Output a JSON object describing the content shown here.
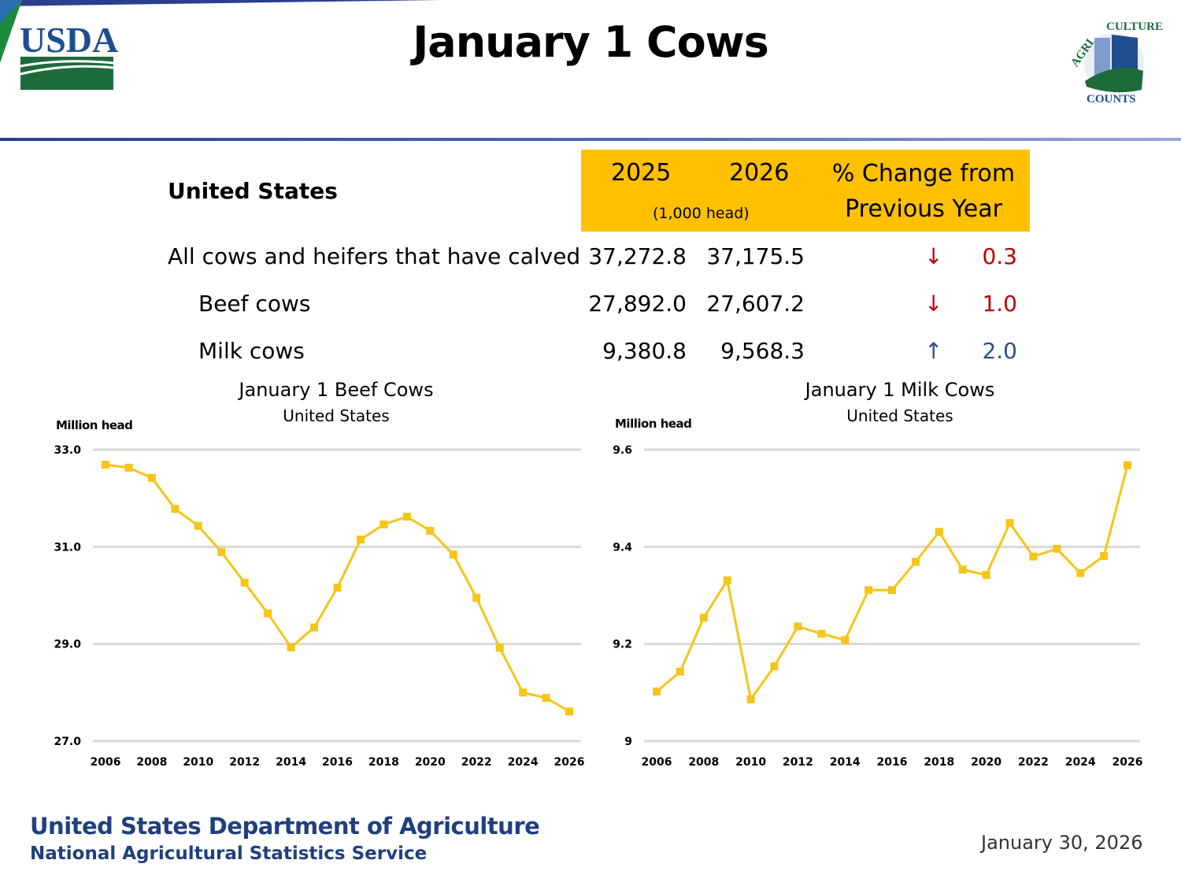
{
  "header": {
    "title": "January 1 Cows",
    "usda_logo_text": "USDA",
    "ag_counts_logo_text": "AGRICULTURE COUNTS"
  },
  "table": {
    "region": "United States",
    "col_2025": "2025",
    "col_2026": "2026",
    "unit": "(1,000 head)",
    "pct_line1": "% Change from",
    "pct_line2": "Previous Year",
    "rows": [
      {
        "label": "All cows and heifers that have calved",
        "v2025": "37,272.8",
        "v2026": "37,175.5",
        "direction": "down",
        "arrow": "↓",
        "pct": "0.3"
      },
      {
        "label": "Beef cows",
        "v2025": "27,892.0",
        "v2026": "27,607.2",
        "direction": "down",
        "arrow": "↓",
        "pct": "1.0"
      },
      {
        "label": "Milk cows",
        "v2025": "9,380.8",
        "v2026": "9,568.3",
        "direction": "up",
        "arrow": "↑",
        "pct": "2.0"
      }
    ]
  },
  "colors": {
    "highlight": "#ffc000",
    "line": "#f5c518",
    "down": "#c00000",
    "up": "#2e4d8f",
    "footer": "#1f3f7f"
  },
  "chart_data": [
    {
      "type": "line",
      "title": "January 1 Beef Cows",
      "subtitle": "United States",
      "ylabel": "Million head",
      "xlabel": "",
      "ylim": [
        27.0,
        33.0
      ],
      "yticks": [
        "27.0",
        "29.0",
        "31.0",
        "33.0"
      ],
      "ytick_values": [
        27,
        29,
        31,
        33
      ],
      "xtick_labels": [
        "2006",
        "2008",
        "2010",
        "2012",
        "2014",
        "2016",
        "2018",
        "2020",
        "2022",
        "2024",
        "2026"
      ],
      "grid": true,
      "x": [
        2006,
        2007,
        2008,
        2009,
        2010,
        2011,
        2012,
        2013,
        2014,
        2015,
        2016,
        2017,
        2018,
        2019,
        2020,
        2021,
        2022,
        2023,
        2024,
        2025,
        2026
      ],
      "values": [
        32.69,
        32.63,
        32.42,
        31.78,
        31.43,
        30.89,
        30.26,
        29.63,
        28.93,
        29.34,
        30.16,
        31.15,
        31.46,
        31.62,
        31.33,
        30.84,
        29.95,
        28.92,
        28.0,
        27.89,
        27.61
      ]
    },
    {
      "type": "line",
      "title": "January 1 Milk Cows",
      "subtitle": "United States",
      "ylabel": "Million head",
      "xlabel": "",
      "ylim": [
        9.0,
        9.6
      ],
      "yticks": [
        "9",
        "9.2",
        "9.4",
        "9.6"
      ],
      "ytick_values": [
        9,
        9.2,
        9.4,
        9.6
      ],
      "xtick_labels": [
        "2006",
        "2008",
        "2010",
        "2012",
        "2014",
        "2016",
        "2018",
        "2020",
        "2022",
        "2024",
        "2026"
      ],
      "grid": true,
      "x": [
        2006,
        2007,
        2008,
        2009,
        2010,
        2011,
        2012,
        2013,
        2014,
        2015,
        2016,
        2017,
        2018,
        2019,
        2020,
        2021,
        2022,
        2023,
        2024,
        2025,
        2026
      ],
      "values": [
        9.102,
        9.143,
        9.254,
        9.331,
        9.086,
        9.154,
        9.236,
        9.221,
        9.208,
        9.311,
        9.311,
        9.369,
        9.431,
        9.353,
        9.342,
        9.449,
        9.38,
        9.396,
        9.346,
        9.381,
        9.568
      ]
    }
  ],
  "footer": {
    "line1": "United States Department of Agriculture",
    "line2": "National Agricultural Statistics Service",
    "date": "January 30, 2026"
  }
}
